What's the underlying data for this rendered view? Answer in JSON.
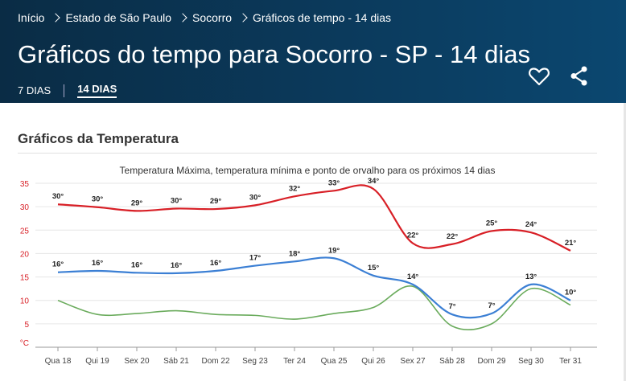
{
  "breadcrumb": [
    "Início",
    "Estado de São Paulo",
    "Socorro",
    "Gráficos de tempo - 14 dias"
  ],
  "page_title": "Gráficos do tempo para Socorro - SP - 14 dias",
  "tabs": [
    {
      "label": "7 DIAS",
      "active": false
    },
    {
      "label": "14 DIAS",
      "active": true
    }
  ],
  "icons": {
    "favorite": "heart-icon",
    "share": "share-icon"
  },
  "section_title": "Gráficos da Temperatura",
  "chart_data": {
    "type": "line",
    "title": "Temperatura Máxima, temperatura mínima e ponto de orvalho para os próximos 14 dias",
    "ylabel": "°C",
    "ylim": [
      0,
      35
    ],
    "yticks": [
      5,
      10,
      15,
      20,
      25,
      30,
      35
    ],
    "grid": true,
    "categories": [
      "Qua 18",
      "Qui 19",
      "Sex 20",
      "Sáb 21",
      "Dom 22",
      "Seg 23",
      "Ter 24",
      "Qua 25",
      "Qui 26",
      "Sex 27",
      "Sáb 28",
      "Dom 29",
      "Seg 30",
      "Ter 31"
    ],
    "series": [
      {
        "key": "max",
        "color": "#d81f26",
        "values": [
          30,
          30,
          29,
          30,
          29,
          30,
          32,
          33,
          34,
          22,
          22,
          25,
          24,
          21
        ],
        "labels": [
          "30°",
          "30°",
          "29°",
          "30°",
          "29°",
          "30°",
          "32°",
          "33°",
          "34°",
          "22°",
          "22°",
          "25°",
          "24°",
          "21°"
        ],
        "line": [
          30.5,
          29.9,
          29.1,
          29.6,
          29.5,
          30.3,
          32.2,
          33.4,
          33.8,
          22.2,
          22.0,
          24.8,
          24.5,
          20.6
        ]
      },
      {
        "key": "min",
        "color": "#3b7fd4",
        "values": [
          16,
          16,
          16,
          16,
          16,
          17,
          18,
          19,
          15,
          14,
          7,
          7,
          13,
          10
        ],
        "labels": [
          "16°",
          "16°",
          "16°",
          "16°",
          "16°",
          "17°",
          "18°",
          "19°",
          "15°",
          "14°",
          "7°",
          "7°",
          "13°",
          "10°"
        ],
        "line": [
          16.0,
          16.3,
          15.9,
          15.8,
          16.3,
          17.4,
          18.3,
          19.0,
          15.3,
          13.4,
          7.0,
          7.2,
          13.4,
          10.0
        ]
      },
      {
        "key": "dew",
        "color": "#6aab5c",
        "values": [
          10,
          7,
          7.2,
          7.8,
          7,
          6.8,
          6,
          7.2,
          8.5,
          13,
          4.5,
          5,
          12.5,
          9
        ],
        "line": [
          10.0,
          7.0,
          7.2,
          7.8,
          7.0,
          6.8,
          6.0,
          7.2,
          8.5,
          13.0,
          4.5,
          5.0,
          12.5,
          9.0
        ]
      }
    ]
  }
}
